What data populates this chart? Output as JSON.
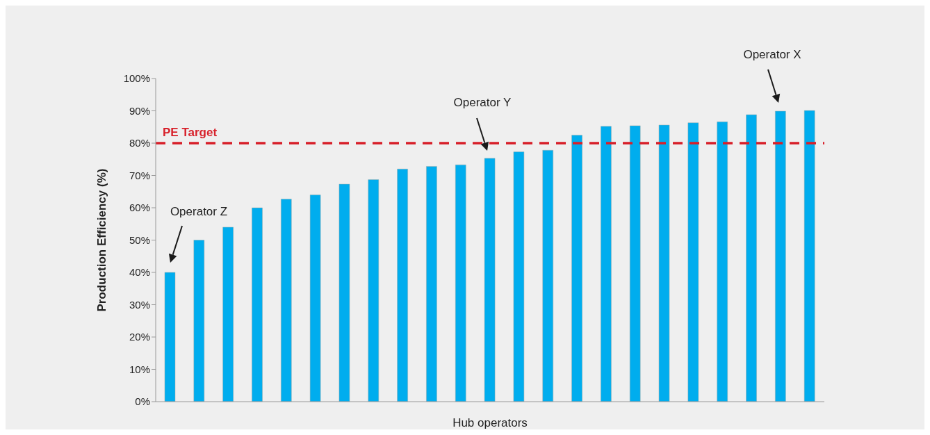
{
  "chart_data": {
    "type": "bar",
    "xlabel": "Hub operators",
    "ylabel": "Production Efficiency (%)",
    "categories": [
      null,
      null,
      null,
      null,
      null,
      null,
      null,
      null,
      null,
      null,
      null,
      null,
      null,
      null,
      null,
      null,
      null,
      null,
      null,
      null,
      null,
      null,
      null
    ],
    "values": [
      40,
      50,
      54,
      60,
      62.7,
      64,
      67.3,
      68.7,
      72,
      72.8,
      73.3,
      75.3,
      77.3,
      77.8,
      82.5,
      85.2,
      85.4,
      85.6,
      86.3,
      86.6,
      88.8,
      89.9,
      90.1
    ],
    "color": "#00adee",
    "ylim": [
      0,
      100
    ],
    "yticks": [
      {
        "value": 0,
        "label": "0%"
      },
      {
        "value": 10,
        "label": "10%"
      },
      {
        "value": 20,
        "label": "20%"
      },
      {
        "value": 30,
        "label": "30%"
      },
      {
        "value": 40,
        "label": "40%"
      },
      {
        "value": 50,
        "label": "50%"
      },
      {
        "value": 60,
        "label": "60%"
      },
      {
        "value": 70,
        "label": "70%"
      },
      {
        "value": 80,
        "label": "80%"
      },
      {
        "value": 90,
        "label": "90%"
      },
      {
        "value": 100,
        "label": "100%"
      }
    ],
    "ref_lines": [
      {
        "axis": "y",
        "value": 80,
        "label": "PE Target",
        "color": "#d7202a",
        "line_style": "dashed"
      }
    ],
    "annotations": [
      "Operator Z",
      "Operator Y",
      "Operator X"
    ],
    "tick_labels": "y"
  }
}
